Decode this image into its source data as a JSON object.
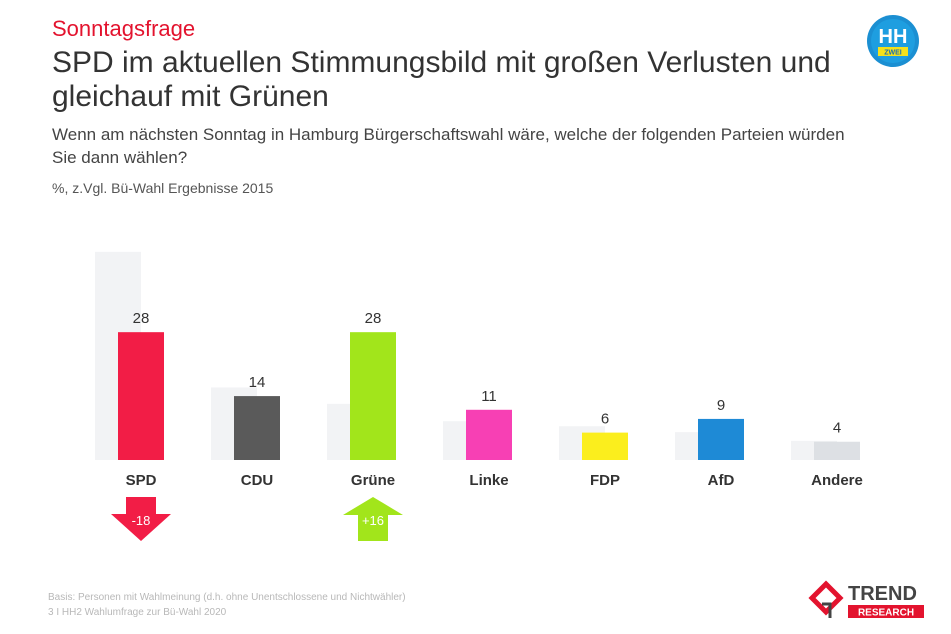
{
  "header": {
    "kicker": "Sonntagsfrage",
    "title": "SPD im aktuellen Stimmungsbild mit großen Verlusten und gleichauf mit Grünen",
    "subtitle": "Wenn am nächsten Sonntag in Hamburg Bürgerschaftswahl wäre, welche der folgenden Parteien würden Sie dann wählen?",
    "unit_note": "%, z.Vgl. Bü-Wahl Ergebnisse 2015"
  },
  "logos": {
    "hh2": {
      "line1": "HH",
      "line2": "ZWEI"
    },
    "trend": {
      "line1": "TREND",
      "line2": "RESEARCH"
    }
  },
  "chart_data": {
    "type": "bar",
    "title": "SPD im aktuellen Stimmungsbild mit großen Verlusten und gleichauf mit Grünen",
    "xlabel": "",
    "ylabel": "%",
    "ylim": [
      0,
      46
    ],
    "categories": [
      "SPD",
      "CDU",
      "Grüne",
      "Linke",
      "FDP",
      "AfD",
      "Andere"
    ],
    "series": [
      {
        "name": "Bü-Wahl 2015",
        "values": [
          45.6,
          15.9,
          12.3,
          8.5,
          7.4,
          6.1,
          4.2
        ]
      },
      {
        "name": "Sonntagsfrage",
        "values": [
          28,
          14,
          28,
          11,
          6,
          9,
          4
        ]
      }
    ],
    "colors": [
      "#f21d46",
      "#5a5a5a",
      "#a2e51b",
      "#f740b4",
      "#fbee1d",
      "#1e8ad6",
      "#dde0e4"
    ],
    "ghost_color": "#f2f3f5",
    "changes": [
      {
        "party": "SPD",
        "label": "-18",
        "direction": "down",
        "color": "#f21d46"
      },
      {
        "party": "Grüne",
        "label": "+16",
        "direction": "up",
        "color": "#a2e51b"
      }
    ],
    "legend": "none",
    "grid": false
  },
  "footer": {
    "basis": "Basis: Personen mit Wahlmeinung (d.h. ohne Unentschlossene und Nichtwähler)",
    "source": "3 I HH2 Wahlumfrage zur Bü-Wahl 2020"
  }
}
